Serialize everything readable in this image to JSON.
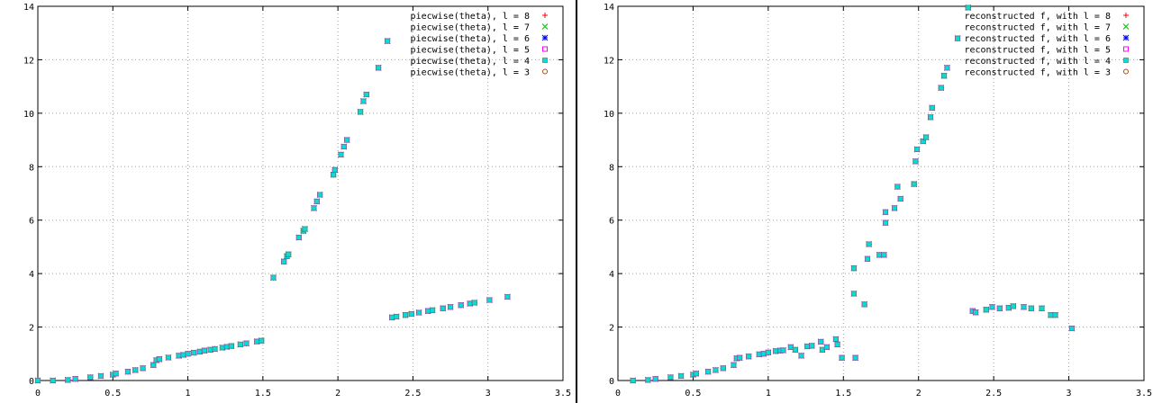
{
  "chart_data": [
    {
      "type": "scatter",
      "xlim": [
        0,
        3.5
      ],
      "ylim": [
        0,
        14
      ],
      "x_ticks": [
        "0",
        "0.5",
        "1",
        "1.5",
        "2",
        "2.5",
        "3",
        "3.5"
      ],
      "y_ticks": [
        "0",
        "2",
        "4",
        "6",
        "8",
        "10",
        "12",
        "14"
      ],
      "grid": true,
      "legend_position": "top-right",
      "series": [
        {
          "name": "piecwise(theta), l = 8",
          "color": "#ff0000",
          "marker": "plus"
        },
        {
          "name": "piecwise(theta), l = 7",
          "color": "#00c000",
          "marker": "cross"
        },
        {
          "name": "piecwise(theta), l = 6",
          "color": "#0000ff",
          "marker": "star"
        },
        {
          "name": "piecwise(theta), l = 5",
          "color": "#ff00ff",
          "marker": "square"
        },
        {
          "name": "piecwise(theta), l = 4",
          "color": "#00e0e0",
          "marker": "filled-square"
        },
        {
          "name": "piecwise(theta), l = 3",
          "color": "#c04000",
          "marker": "circle"
        }
      ],
      "points": [
        [
          0.0,
          0.0
        ],
        [
          0.1,
          0.0
        ],
        [
          0.2,
          0.02
        ],
        [
          0.25,
          0.06
        ],
        [
          0.35,
          0.12
        ],
        [
          0.42,
          0.17
        ],
        [
          0.5,
          0.22
        ],
        [
          0.52,
          0.26
        ],
        [
          0.6,
          0.33
        ],
        [
          0.65,
          0.39
        ],
        [
          0.7,
          0.46
        ],
        [
          0.77,
          0.58
        ],
        [
          0.79,
          0.76
        ],
        [
          0.81,
          0.8
        ],
        [
          0.87,
          0.86
        ],
        [
          0.94,
          0.93
        ],
        [
          0.97,
          0.96
        ],
        [
          1.0,
          1.0
        ],
        [
          1.04,
          1.04
        ],
        [
          1.08,
          1.08
        ],
        [
          1.11,
          1.12
        ],
        [
          1.15,
          1.15
        ],
        [
          1.18,
          1.18
        ],
        [
          1.23,
          1.23
        ],
        [
          1.26,
          1.26
        ],
        [
          1.29,
          1.29
        ],
        [
          1.35,
          1.35
        ],
        [
          1.39,
          1.39
        ],
        [
          1.46,
          1.46
        ],
        [
          1.49,
          1.49
        ],
        [
          1.57,
          3.85
        ],
        [
          1.64,
          4.45
        ],
        [
          1.66,
          4.65
        ],
        [
          1.67,
          4.72
        ],
        [
          1.74,
          5.35
        ],
        [
          1.77,
          5.6
        ],
        [
          1.78,
          5.67
        ],
        [
          1.84,
          6.45
        ],
        [
          1.86,
          6.7
        ],
        [
          1.88,
          6.95
        ],
        [
          1.97,
          7.7
        ],
        [
          1.98,
          7.88
        ],
        [
          2.02,
          8.45
        ],
        [
          2.04,
          8.75
        ],
        [
          2.06,
          9.0
        ],
        [
          2.15,
          10.05
        ],
        [
          2.17,
          10.45
        ],
        [
          2.19,
          10.7
        ],
        [
          2.27,
          11.7
        ],
        [
          2.33,
          12.7
        ],
        [
          2.36,
          2.36
        ],
        [
          2.39,
          2.39
        ],
        [
          2.45,
          2.45
        ],
        [
          2.49,
          2.49
        ],
        [
          2.54,
          2.54
        ],
        [
          2.6,
          2.6
        ],
        [
          2.63,
          2.63
        ],
        [
          2.7,
          2.7
        ],
        [
          2.75,
          2.75
        ],
        [
          2.82,
          2.82
        ],
        [
          2.88,
          2.88
        ],
        [
          2.91,
          2.91
        ],
        [
          3.01,
          3.01
        ],
        [
          3.13,
          3.13
        ]
      ]
    },
    {
      "type": "scatter",
      "xlim": [
        0,
        3.5
      ],
      "ylim": [
        0,
        14
      ],
      "x_ticks": [
        "0",
        "0.5",
        "1",
        "1.5",
        "2",
        "2.5",
        "3",
        "3.5"
      ],
      "y_ticks": [
        "0",
        "2",
        "4",
        "6",
        "8",
        "10",
        "12",
        "14"
      ],
      "grid": true,
      "legend_position": "top-right",
      "series": [
        {
          "name": "reconstructed f, with l = 8",
          "color": "#ff0000",
          "marker": "plus"
        },
        {
          "name": "reconstructed f, with l = 7",
          "color": "#00c000",
          "marker": "cross"
        },
        {
          "name": "reconstructed f, with l = 6",
          "color": "#0000ff",
          "marker": "star"
        },
        {
          "name": "reconstructed f, with l = 5",
          "color": "#ff00ff",
          "marker": "square"
        },
        {
          "name": "reconstructed f, with l = 4",
          "color": "#00e0e0",
          "marker": "filled-square"
        },
        {
          "name": "reconstructed f, with l = 3",
          "color": "#c04000",
          "marker": "circle"
        }
      ],
      "points": [
        [
          0.1,
          0.0
        ],
        [
          0.2,
          0.02
        ],
        [
          0.25,
          0.06
        ],
        [
          0.35,
          0.12
        ],
        [
          0.42,
          0.17
        ],
        [
          0.5,
          0.22
        ],
        [
          0.52,
          0.26
        ],
        [
          0.6,
          0.33
        ],
        [
          0.65,
          0.39
        ],
        [
          0.7,
          0.46
        ],
        [
          0.77,
          0.58
        ],
        [
          0.79,
          0.83
        ],
        [
          0.81,
          0.85
        ],
        [
          0.87,
          0.9
        ],
        [
          0.94,
          0.98
        ],
        [
          0.97,
          1.0
        ],
        [
          1.0,
          1.05
        ],
        [
          1.05,
          1.1
        ],
        [
          1.08,
          1.12
        ],
        [
          1.1,
          1.13
        ],
        [
          1.15,
          1.25
        ],
        [
          1.18,
          1.15
        ],
        [
          1.22,
          0.93
        ],
        [
          1.26,
          1.28
        ],
        [
          1.29,
          1.3
        ],
        [
          1.35,
          1.45
        ],
        [
          1.36,
          1.15
        ],
        [
          1.39,
          1.25
        ],
        [
          1.45,
          1.55
        ],
        [
          1.46,
          1.35
        ],
        [
          1.49,
          0.85
        ],
        [
          1.57,
          4.2
        ],
        [
          1.57,
          3.25
        ],
        [
          1.58,
          0.85
        ],
        [
          1.64,
          2.85
        ],
        [
          1.66,
          4.55
        ],
        [
          1.67,
          5.1
        ],
        [
          1.74,
          4.7
        ],
        [
          1.77,
          4.7
        ],
        [
          1.78,
          5.9
        ],
        [
          1.78,
          6.3
        ],
        [
          1.84,
          6.45
        ],
        [
          1.86,
          7.25
        ],
        [
          1.88,
          6.8
        ],
        [
          1.97,
          7.35
        ],
        [
          1.98,
          8.2
        ],
        [
          1.99,
          8.65
        ],
        [
          2.03,
          8.95
        ],
        [
          2.05,
          9.1
        ],
        [
          2.08,
          9.85
        ],
        [
          2.09,
          10.2
        ],
        [
          2.15,
          10.95
        ],
        [
          2.17,
          11.4
        ],
        [
          2.19,
          11.7
        ],
        [
          2.26,
          12.8
        ],
        [
          2.33,
          13.95
        ],
        [
          2.36,
          2.6
        ],
        [
          2.38,
          2.55
        ],
        [
          2.45,
          2.65
        ],
        [
          2.49,
          2.75
        ],
        [
          2.54,
          2.7
        ],
        [
          2.6,
          2.72
        ],
        [
          2.63,
          2.78
        ],
        [
          2.7,
          2.75
        ],
        [
          2.75,
          2.7
        ],
        [
          2.82,
          2.7
        ],
        [
          2.88,
          2.45
        ],
        [
          2.91,
          2.45
        ],
        [
          3.02,
          1.95
        ]
      ]
    }
  ]
}
